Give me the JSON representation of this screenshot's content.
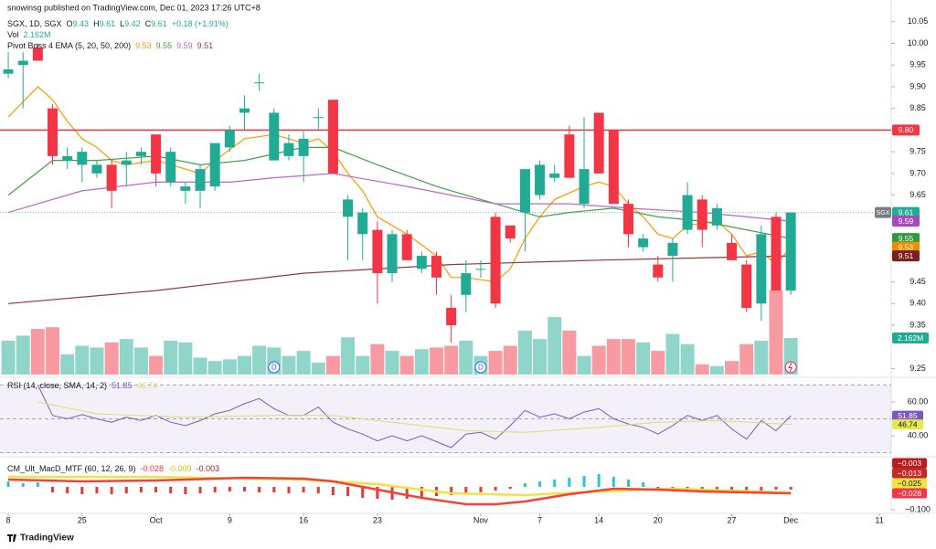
{
  "chart_data": {
    "type": "candlestick",
    "subtitle": "snowinsg published on TradingView.com, Dec 01, 2023 17:26 UTC+8",
    "legend": {
      "symbol": "SGX, 1D, SGX",
      "items": [
        {
          "key": "O",
          "value": "9.43"
        },
        {
          "key": "H",
          "value": "9.61"
        },
        {
          "key": "L",
          "value": "9.42"
        },
        {
          "key": "C",
          "value": "9.61"
        }
      ],
      "change": "+0.18 (+1.91%)",
      "value_color": "#22ab94"
    },
    "xlim": [
      -0.56,
      59.8
    ],
    "xticks": [
      {
        "value": 0,
        "label": "8"
      },
      {
        "value": 5,
        "label": "25"
      },
      {
        "value": 10,
        "label": "Oct"
      },
      {
        "value": 15,
        "label": "9"
      },
      {
        "value": 20,
        "label": "16"
      },
      {
        "value": 25,
        "label": "23"
      },
      {
        "value": 32,
        "label": "Nov"
      },
      {
        "value": 36,
        "label": "7"
      },
      {
        "value": 40,
        "label": "14"
      },
      {
        "value": 44,
        "label": "20"
      },
      {
        "value": 49,
        "label": "27"
      },
      {
        "value": 53,
        "label": "Dec"
      },
      {
        "value": 59,
        "label": "11"
      }
    ],
    "ylim": [
      9.23,
      10.1
    ],
    "yticks": [
      10.05,
      {
        "value": 10,
        "label": "10.00"
      },
      9.95,
      {
        "value": 9.9,
        "label": "9.90"
      },
      9.85,
      9.75,
      {
        "value": 9.7,
        "label": "9.70"
      },
      9.65,
      9.45,
      {
        "value": 9.4,
        "label": "9.40"
      },
      9.35,
      9.25
    ],
    "grid": false,
    "up_color": "#22ab94",
    "down_color": "#f23645",
    "open": [
      9.93,
      9.95,
      9.99,
      9.85,
      9.73,
      9.72,
      9.7,
      9.72,
      9.72,
      9.74,
      9.79,
      9.68,
      9.66,
      9.66,
      9.67,
      9.76,
      9.84,
      9.91,
      9.73,
      9.74,
      9.74,
      9.83,
      9.87,
      9.6,
      9.56,
      9.57,
      9.47,
      9.56,
      9.48,
      9.51,
      9.39,
      9.42,
      9.48,
      9.6,
      9.58,
      9.61,
      9.65,
      9.69,
      9.79,
      9.63,
      9.84,
      9.8,
      9.63,
      9.53,
      9.49,
      9.51,
      9.57,
      9.64,
      9.58,
      9.54,
      9.49,
      9.4,
      9.6,
      9.43
    ],
    "high": [
      9.98,
      9.98,
      10.0,
      9.86,
      9.76,
      9.76,
      9.73,
      9.73,
      9.75,
      9.76,
      9.79,
      9.76,
      9.68,
      9.72,
      9.77,
      9.81,
      9.88,
      9.93,
      9.85,
      9.79,
      9.8,
      9.85,
      9.87,
      9.65,
      9.62,
      9.59,
      9.57,
      9.57,
      9.52,
      9.52,
      9.42,
      9.5,
      9.5,
      9.61,
      9.58,
      9.71,
      9.73,
      9.72,
      9.81,
      9.83,
      9.84,
      9.8,
      9.64,
      9.56,
      9.51,
      9.55,
      9.68,
      9.65,
      9.63,
      9.56,
      9.5,
      9.58,
      9.61,
      9.61
    ],
    "low": [
      9.92,
      9.85,
      9.96,
      9.72,
      9.71,
      9.68,
      9.69,
      9.62,
      9.67,
      9.72,
      9.67,
      9.67,
      9.63,
      9.62,
      9.66,
      9.75,
      9.8,
      9.89,
      9.73,
      9.73,
      9.68,
      9.8,
      9.7,
      9.5,
      9.5,
      9.4,
      9.45,
      9.5,
      9.47,
      9.42,
      9.31,
      9.38,
      9.46,
      9.39,
      9.54,
      9.52,
      9.64,
      9.68,
      9.69,
      9.62,
      9.7,
      9.63,
      9.53,
      9.52,
      9.45,
      9.45,
      9.56,
      9.53,
      9.57,
      9.5,
      9.38,
      9.36,
      9.43,
      9.42
    ],
    "close": [
      9.94,
      9.96,
      9.96,
      9.74,
      9.74,
      9.75,
      9.72,
      9.66,
      9.73,
      9.75,
      9.7,
      9.75,
      9.67,
      9.71,
      9.77,
      9.8,
      9.85,
      9.91,
      9.84,
      9.77,
      9.78,
      9.83,
      9.7,
      9.64,
      9.61,
      9.47,
      9.56,
      9.5,
      9.51,
      9.46,
      9.35,
      9.47,
      9.48,
      9.4,
      9.55,
      9.71,
      9.72,
      9.7,
      9.69,
      9.71,
      9.7,
      9.63,
      9.56,
      9.55,
      9.46,
      9.54,
      9.65,
      9.57,
      9.62,
      9.5,
      9.39,
      9.56,
      9.43,
      9.61
    ],
    "volume": {
      "label": "Vol",
      "value_label": "2.162M",
      "ylim": [
        0,
        10
      ],
      "up_color": "rgba(34,171,148,0.5)",
      "down_color": "rgba(242,54,69,0.5)",
      "values": [
        2.0,
        2.3,
        2.7,
        2.8,
        1.2,
        1.7,
        1.6,
        1.9,
        2.1,
        1.6,
        1.1,
        2.0,
        1.9,
        1.0,
        0.8,
        0.9,
        1.1,
        1.7,
        1.6,
        1.1,
        1.4,
        0.7,
        1.1,
        2.2,
        1.1,
        1.8,
        1.4,
        1.1,
        1.5,
        1.6,
        1.7,
        2.0,
        1.1,
        1.4,
        1.7,
        2.6,
        2.1,
        3.4,
        2.6,
        1.1,
        1.7,
        2.1,
        2.1,
        1.9,
        1.4,
        2.4,
        1.8,
        0.6,
        0.5,
        0.8,
        1.8,
        2.0,
        5.0,
        2.162
      ],
      "tag": {
        "value": 2.162,
        "label": "2.162M",
        "color": "#22ab94"
      }
    },
    "ema": {
      "label": "Pivot Boss 4 EMA (5, 20, 50, 200)",
      "series": [
        {
          "color": "#ff9800",
          "value_label": "9.53",
          "x": [
            0,
            2,
            3,
            4,
            5,
            6,
            7,
            8,
            10,
            12,
            13,
            14,
            16,
            18,
            20,
            21,
            22,
            23,
            24,
            25,
            27,
            29,
            30,
            31,
            33,
            34,
            35,
            36,
            37,
            39,
            40,
            41,
            42,
            43,
            44,
            45,
            46,
            48,
            49,
            50,
            51,
            52,
            53
          ],
          "values": [
            9.83,
            9.9,
            9.87,
            9.82,
            9.78,
            9.76,
            9.73,
            9.72,
            9.73,
            9.71,
            9.7,
            9.73,
            9.78,
            9.79,
            9.77,
            9.78,
            9.75,
            9.7,
            9.66,
            9.6,
            9.56,
            9.51,
            9.46,
            9.46,
            9.45,
            9.48,
            9.55,
            9.6,
            9.64,
            9.67,
            9.68,
            9.67,
            9.63,
            9.6,
            9.56,
            9.55,
            9.58,
            9.59,
            9.56,
            9.51,
            9.52,
            9.49,
            9.53
          ]
        },
        {
          "color": "#43a047",
          "value_label": "9.55",
          "x": [
            0,
            3,
            6,
            10,
            13,
            16,
            20,
            22,
            25,
            29,
            33,
            36,
            38,
            41,
            44,
            47,
            50,
            53
          ],
          "values": [
            9.65,
            9.73,
            9.73,
            9.74,
            9.72,
            9.73,
            9.76,
            9.76,
            9.72,
            9.67,
            9.63,
            9.6,
            9.61,
            9.62,
            9.6,
            9.59,
            9.57,
            9.55
          ]
        },
        {
          "color": "#ba68c8",
          "value_label": "9.59",
          "x": [
            0,
            5,
            10,
            15,
            18,
            22,
            27,
            33,
            38,
            42,
            47,
            53
          ],
          "values": [
            9.61,
            9.66,
            9.68,
            9.68,
            9.69,
            9.7,
            9.67,
            9.63,
            9.63,
            9.62,
            9.61,
            9.59
          ]
        },
        {
          "color": "#8d3b3b",
          "value_label": "9.51",
          "x": [
            0,
            10,
            20,
            30,
            40,
            53
          ],
          "values": [
            9.4,
            9.43,
            9.47,
            9.49,
            9.5,
            9.51
          ]
        }
      ]
    },
    "hlines": [
      {
        "value": 9.8,
        "color": "#f23645"
      }
    ],
    "price_tags": [
      {
        "value": 9.8,
        "label": "9.80",
        "color": "#f23645"
      },
      {
        "value": 9.61,
        "label": "9.61",
        "color": "#22ab94",
        "symbol": "SGX"
      },
      {
        "value": 9.59,
        "label": "9.59",
        "color": "#ab47bc"
      },
      {
        "value": 9.55,
        "label": "9.55",
        "color": "#2e9b3c"
      },
      {
        "value": 9.53,
        "label": "9.53",
        "color": "#f08c00"
      },
      {
        "value": 9.51,
        "label": "9.51",
        "color": "#7b1f1f"
      }
    ],
    "events": [
      {
        "x": 18,
        "label": "D"
      },
      {
        "x": 32,
        "label": "D"
      }
    ],
    "rsi": {
      "label": "RSI (14, close, SMA, 14, 2)",
      "ylim": [
        27.6,
        74.6
      ],
      "yticks": [
        {
          "value": 60,
          "label": "60.00"
        },
        {
          "value": 40,
          "label": "40.00"
        }
      ],
      "levels": [
        70,
        50,
        30
      ],
      "band_color": "rgba(126,87,194,0.09)",
      "series": [
        {
          "color": "#7e57c2",
          "value_label": "51.85",
          "values": [
            null,
            null,
            70,
            52,
            50,
            52.5,
            50,
            48,
            51,
            49,
            52,
            48,
            46,
            49,
            53,
            55,
            59,
            62,
            56,
            52,
            52,
            57,
            48,
            44,
            41,
            37,
            40,
            37,
            40,
            36.5,
            33,
            41,
            42,
            38,
            46,
            55,
            51,
            53,
            50,
            54,
            56,
            50,
            47,
            45,
            41,
            46,
            52,
            49,
            52,
            44,
            38,
            49,
            43,
            51.85
          ]
        },
        {
          "color": "#dede6a",
          "value_label": "46.74",
          "x": [
            2,
            6,
            12,
            18,
            22,
            27,
            31,
            35,
            40,
            44,
            48,
            53
          ],
          "values": [
            60,
            53,
            51,
            52,
            52,
            47,
            43,
            42,
            45,
            48,
            49,
            46.74
          ]
        }
      ],
      "tags": [
        {
          "value": 51.85,
          "label": "51.85",
          "color": "#7e57c2",
          "text_color": "#ffffff"
        },
        {
          "value": 46.74,
          "label": "46.74",
          "color": "#e8e84a",
          "text_color": "#131722"
        }
      ]
    },
    "macd": {
      "label": "CM_Ult_MacD_MTF (60, 12, 26, 9)",
      "ylim": [
        -0.116,
        0.12
      ],
      "yticks": [
        {
          "value": -0.1,
          "label": "−0.100"
        }
      ],
      "legend_values": [
        {
          "label": "-0.028",
          "color": "#f23645"
        },
        {
          "label": "-0.009",
          "color": "#c9c900"
        },
        {
          "label": "-0.003",
          "color": "#b71c1c"
        }
      ],
      "histogram": {
        "up_color": "#26c6da",
        "down_color": "#e53935",
        "values": [
          0.024,
          0.016,
          0.02,
          -0.024,
          -0.028,
          -0.032,
          -0.028,
          -0.032,
          -0.028,
          -0.024,
          -0.024,
          -0.028,
          -0.032,
          -0.028,
          -0.024,
          -0.02,
          -0.02,
          -0.024,
          -0.024,
          -0.028,
          -0.024,
          -0.028,
          -0.036,
          -0.04,
          -0.048,
          -0.052,
          -0.056,
          -0.052,
          -0.048,
          -0.04,
          -0.036,
          -0.032,
          -0.024,
          -0.016,
          -0.008,
          0.016,
          0.024,
          0.032,
          0.04,
          0.048,
          0.056,
          0.044,
          0.032,
          0.02,
          -0.016,
          -0.02,
          -0.02,
          -0.024,
          -0.024,
          -0.02,
          -0.02,
          -0.016,
          -0.012,
          -0.012
        ]
      },
      "series": [
        {
          "color": "#f0e442",
          "x": [
            0,
            10,
            20,
            25,
            30,
            35,
            40,
            45,
            53
          ],
          "values": [
            0.044,
            0.044,
            0.032,
            0.012,
            -0.028,
            -0.036,
            -0.02,
            -0.008,
            -0.025
          ]
        },
        {
          "color": "#f44336",
          "x": [
            0,
            5,
            10,
            16,
            20,
            22,
            25,
            28,
            31,
            33,
            35,
            38,
            41,
            44,
            47,
            50,
            53
          ],
          "values": [
            0.032,
            0.024,
            0.028,
            0.04,
            0.036,
            0.024,
            -0.012,
            -0.048,
            -0.076,
            -0.076,
            -0.064,
            -0.032,
            -0.008,
            -0.012,
            -0.02,
            -0.024,
            -0.028
          ]
        }
      ],
      "tags": [
        {
          "value": -0.003,
          "label": "−0.003",
          "color": "#b71c1c",
          "text_color": "#ffffff"
        },
        {
          "value": -0.013,
          "label": "−0.013",
          "color": "#c62828",
          "text_color": "#ffffff"
        },
        {
          "value": -0.025,
          "label": "−0.025",
          "color": "#f0e442",
          "text_color": "#131722"
        },
        {
          "value": -0.028,
          "label": "−0.028",
          "color": "#f23645",
          "text_color": "#ffffff"
        }
      ]
    },
    "source": "TradingView"
  }
}
